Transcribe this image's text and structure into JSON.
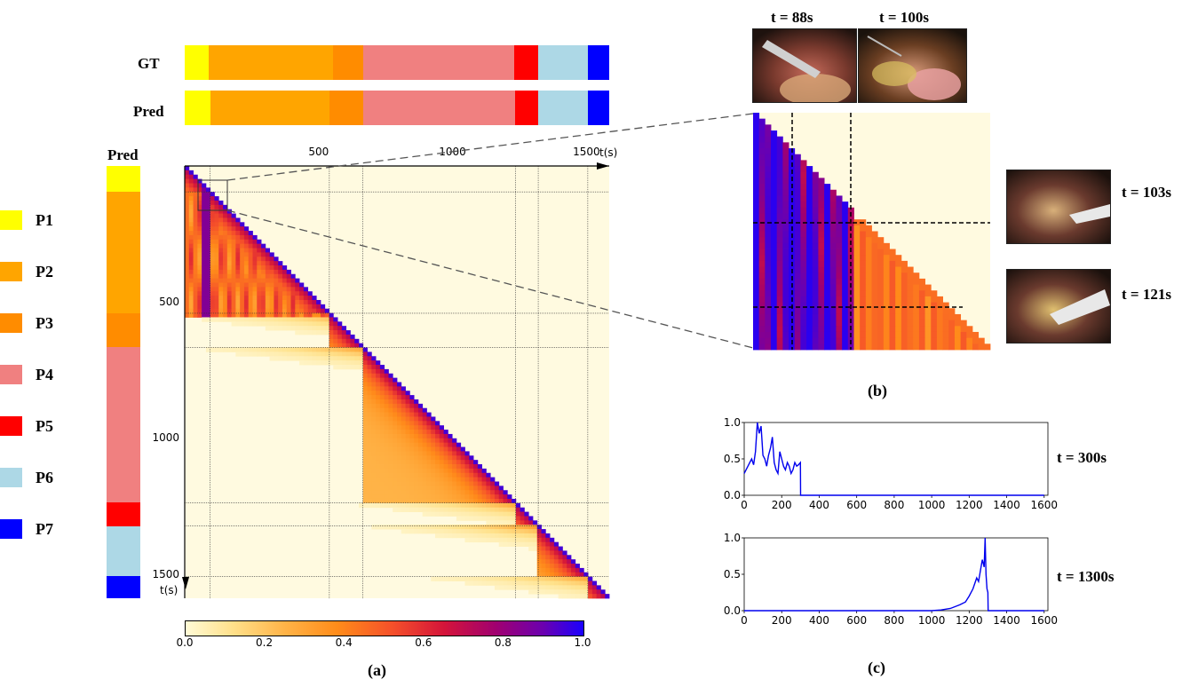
{
  "colors": {
    "P1": "#ffff00",
    "P2": "#ffa500",
    "P3": "#ff8c00",
    "P4": "#f08080",
    "P5": "#ff0000",
    "P6": "#add8e6",
    "P7": "#0000ff",
    "matrix_background": "#fffae0",
    "line": "#0000ee"
  },
  "rows": {
    "gt": "GT",
    "pred": "Pred"
  },
  "sidebar": {
    "title": "Pred"
  },
  "legend": [
    "P1",
    "P2",
    "P3",
    "P4",
    "P5",
    "P6",
    "P7"
  ],
  "matrix": {
    "top_ticks": [
      "500",
      "1000",
      "1500"
    ],
    "left_ticks": [
      "500",
      "1000",
      "1500"
    ],
    "top_axis_label": "t(s)",
    "left_axis_label": "t(s)"
  },
  "colorbar": {
    "ticks": [
      "0.0",
      "0.2",
      "0.4",
      "0.6",
      "0.8",
      "1.0"
    ]
  },
  "zoom": {
    "frames_top": [
      "t = 88s",
      "t = 100s"
    ],
    "frames_right": [
      "t = 103s",
      "t = 121s"
    ]
  },
  "captions": {
    "a": "(a)",
    "b": "(b)",
    "c": "(c)"
  },
  "chart_data": [
    {
      "type": "bar",
      "name": "GT",
      "orientation": "horizontal-segments",
      "segments": [
        {
          "phase": "P1",
          "start": 0,
          "end": 90
        },
        {
          "phase": "P2",
          "start": 90,
          "end": 555
        },
        {
          "phase": "P3",
          "start": 555,
          "end": 665
        },
        {
          "phase": "P4",
          "start": 665,
          "end": 1230
        },
        {
          "phase": "P5",
          "start": 1230,
          "end": 1320
        },
        {
          "phase": "P6",
          "start": 1320,
          "end": 1505
        },
        {
          "phase": "P7",
          "start": 1505,
          "end": 1585
        }
      ],
      "xlim": [
        0,
        1585
      ]
    },
    {
      "type": "bar",
      "name": "Pred",
      "orientation": "horizontal-segments",
      "segments": [
        {
          "phase": "P1",
          "start": 0,
          "end": 95
        },
        {
          "phase": "P2",
          "start": 95,
          "end": 540
        },
        {
          "phase": "P3",
          "start": 540,
          "end": 665
        },
        {
          "phase": "P4",
          "start": 665,
          "end": 1235
        },
        {
          "phase": "P5",
          "start": 1235,
          "end": 1320
        },
        {
          "phase": "P6",
          "start": 1320,
          "end": 1505
        },
        {
          "phase": "P7",
          "start": 1505,
          "end": 1585
        }
      ],
      "xlim": [
        0,
        1585
      ]
    },
    {
      "type": "heatmap",
      "x_ticks": [
        500,
        1000,
        1500
      ],
      "y_ticks": [
        500,
        1000,
        1500
      ],
      "xlim": [
        0,
        1585
      ],
      "ylim": [
        0,
        1585
      ],
      "phase_boundaries": [
        95,
        540,
        665,
        1235,
        1320,
        1505
      ],
      "colorbar_range": [
        0.0,
        1.0
      ]
    },
    {
      "type": "line",
      "series_label": "t = 300s",
      "xlim": [
        0,
        1620
      ],
      "ylim": [
        0.0,
        1.0
      ],
      "x_ticks": [
        0,
        200,
        400,
        600,
        800,
        1000,
        1200,
        1400,
        1600
      ],
      "y_ticks": [
        0.0,
        0.5,
        1.0
      ],
      "x": [
        0,
        10,
        20,
        30,
        40,
        50,
        60,
        70,
        80,
        90,
        100,
        110,
        120,
        130,
        140,
        150,
        160,
        170,
        180,
        190,
        200,
        210,
        220,
        230,
        240,
        250,
        260,
        270,
        280,
        290,
        300,
        301,
        400,
        600,
        800,
        1000,
        1200,
        1400,
        1600
      ],
      "y": [
        0.3,
        0.35,
        0.4,
        0.45,
        0.5,
        0.42,
        0.6,
        1.0,
        0.85,
        0.95,
        0.55,
        0.5,
        0.4,
        0.55,
        0.65,
        0.8,
        0.45,
        0.35,
        0.3,
        0.6,
        0.5,
        0.4,
        0.35,
        0.45,
        0.4,
        0.3,
        0.35,
        0.45,
        0.4,
        0.42,
        0.45,
        0.0,
        0.0,
        0.0,
        0.0,
        0.0,
        0.0,
        0.0,
        0.0
      ]
    },
    {
      "type": "line",
      "series_label": "t = 1300s",
      "xlim": [
        0,
        1620
      ],
      "ylim": [
        0.0,
        1.0
      ],
      "x_ticks": [
        0,
        200,
        400,
        600,
        800,
        1000,
        1200,
        1400,
        1600
      ],
      "y_ticks": [
        0.0,
        0.5,
        1.0
      ],
      "x": [
        0,
        200,
        400,
        600,
        800,
        1000,
        1050,
        1100,
        1150,
        1180,
        1200,
        1220,
        1240,
        1250,
        1260,
        1270,
        1280,
        1285,
        1290,
        1295,
        1300,
        1301,
        1400,
        1600
      ],
      "y": [
        0.0,
        0.0,
        0.0,
        0.0,
        0.0,
        0.0,
        0.01,
        0.03,
        0.08,
        0.12,
        0.2,
        0.3,
        0.45,
        0.4,
        0.55,
        0.7,
        0.6,
        1.0,
        0.5,
        0.3,
        0.25,
        0.0,
        0.0,
        0.0
      ]
    }
  ]
}
